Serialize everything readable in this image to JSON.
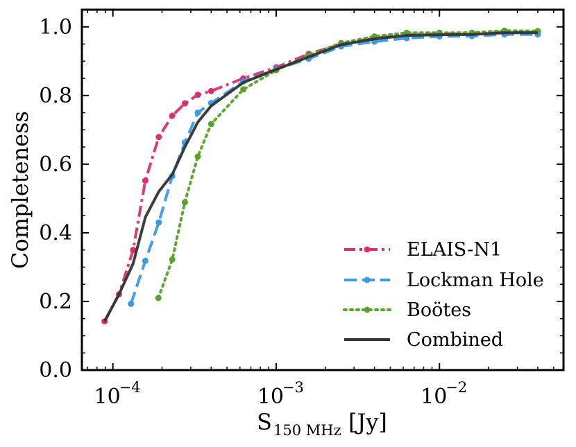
{
  "chart_data": {
    "type": "line",
    "title": "",
    "xlabel": "S",
    "xlabel_sub": "150 MHz",
    "xlabel_unit": "[Jy]",
    "ylabel": "Completeness",
    "xscale": "log",
    "xlim": [
      6.46e-05,
      0.0575
    ],
    "ylim": [
      0.0,
      1.05
    ],
    "grid": false,
    "legend_position": "lower-right",
    "x_ticks": [
      {
        "value": 0.0001,
        "base": "10",
        "exp": "−4"
      },
      {
        "value": 0.001,
        "base": "10",
        "exp": "−3"
      },
      {
        "value": 0.01,
        "base": "10",
        "exp": "−2"
      }
    ],
    "y_ticks": [
      "0.0",
      "0.2",
      "0.4",
      "0.6",
      "0.8",
      "1.0"
    ],
    "series": [
      {
        "name": "ELAIS-N1",
        "color": "#d6336c",
        "style": "dashdot",
        "marker": "circle",
        "x": [
          8.9e-05,
          0.000109,
          0.000133,
          0.000158,
          0.000191,
          0.000231,
          0.000276,
          0.000331,
          0.0004,
          0.00063,
          0.001,
          0.00158,
          0.0025,
          0.004,
          0.0063,
          0.01,
          0.0158,
          0.025,
          0.04
        ],
        "y": [
          0.142,
          0.221,
          0.35,
          0.552,
          0.679,
          0.741,
          0.777,
          0.802,
          0.813,
          0.85,
          0.882,
          0.921,
          0.95,
          0.967,
          0.978,
          0.98,
          0.98,
          0.984,
          0.984
        ]
      },
      {
        "name": "Lockman Hole",
        "color": "#3b9ae1",
        "style": "dashed",
        "marker": "circle",
        "x": [
          0.000129,
          0.000158,
          0.000191,
          0.000231,
          0.000276,
          0.000331,
          0.0004,
          0.00063,
          0.001,
          0.00158,
          0.0025,
          0.004,
          0.0063,
          0.01,
          0.0158,
          0.025,
          0.04
        ],
        "y": [
          0.193,
          0.318,
          0.43,
          0.565,
          0.663,
          0.75,
          0.778,
          0.841,
          0.877,
          0.907,
          0.943,
          0.957,
          0.967,
          0.972,
          0.973,
          0.978,
          0.978
        ]
      },
      {
        "name": "Boötes",
        "color": "#5aa02c",
        "style": "dotted",
        "marker": "circle",
        "x": [
          0.00019,
          0.000231,
          0.000276,
          0.000331,
          0.0004,
          0.00063,
          0.001,
          0.00158,
          0.0025,
          0.004,
          0.0063,
          0.01,
          0.0158,
          0.025,
          0.04
        ],
        "y": [
          0.21,
          0.322,
          0.489,
          0.622,
          0.717,
          0.818,
          0.874,
          0.917,
          0.953,
          0.972,
          0.983,
          0.983,
          0.983,
          0.989,
          0.988
        ]
      },
      {
        "name": "Combined",
        "color": "#333333",
        "style": "solid",
        "marker": "none",
        "x": [
          8.9e-05,
          0.000109,
          0.000133,
          0.000158,
          0.000191,
          0.000231,
          0.000276,
          0.000331,
          0.0004,
          0.00063,
          0.001,
          0.00158,
          0.0025,
          0.004,
          0.0063,
          0.01,
          0.0158,
          0.025,
          0.04
        ],
        "y": [
          0.142,
          0.221,
          0.31,
          0.445,
          0.52,
          0.57,
          0.65,
          0.722,
          0.77,
          0.838,
          0.876,
          0.912,
          0.948,
          0.965,
          0.975,
          0.977,
          0.978,
          0.983,
          0.983
        ]
      }
    ]
  }
}
